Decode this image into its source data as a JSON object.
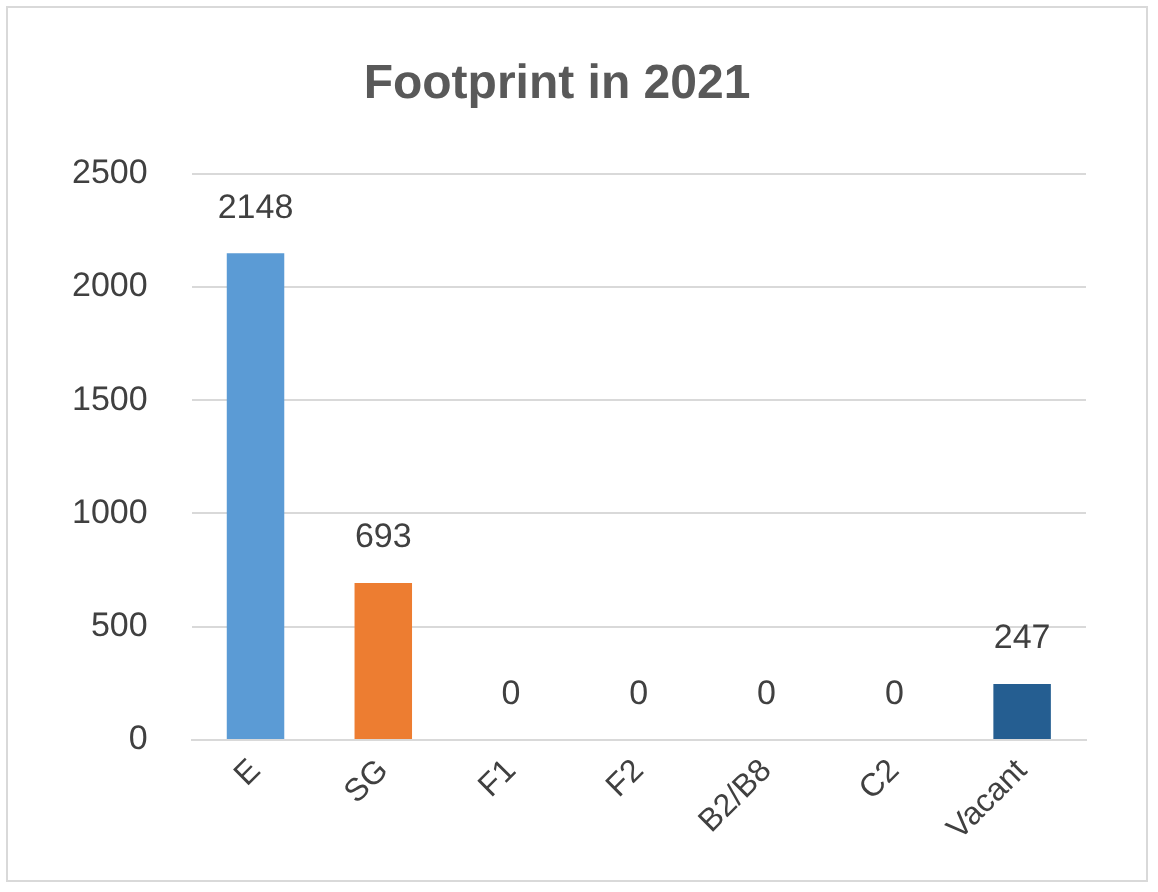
{
  "chart_data": {
    "type": "bar",
    "title": "Footprint in 2021",
    "categories": [
      "E",
      "SG",
      "F1",
      "F2",
      "B2/B8",
      "C2",
      "Vacant"
    ],
    "values": [
      2148,
      693,
      0,
      0,
      0,
      0,
      247
    ],
    "colors": [
      "#5b9bd5",
      "#ed7d31",
      "#a5a5a5",
      "#ffc000",
      "#4472c4",
      "#70ad47",
      "#255e91"
    ],
    "ylim": [
      0,
      2500
    ],
    "yticks": [
      0,
      500,
      1000,
      1500,
      2000,
      2500
    ],
    "grid": "y",
    "data_labels": true,
    "legend": false
  }
}
